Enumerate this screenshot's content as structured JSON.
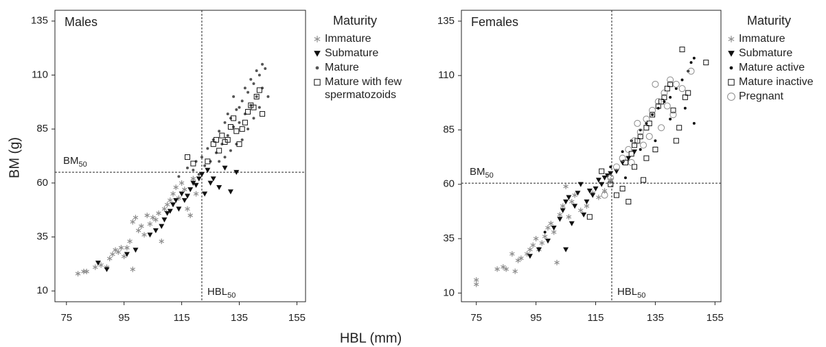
{
  "chart_data": [
    {
      "type": "scatter",
      "title": "Males",
      "xlabel": "HBL (mm)",
      "ylabel": "BM (g)",
      "legend_title": "Maturity",
      "xlim": [
        71,
        158
      ],
      "xticks": [
        75,
        95,
        115,
        135,
        155
      ],
      "ylim": [
        5,
        140
      ],
      "yticks": [
        10,
        35,
        60,
        85,
        110,
        135
      ],
      "hline": {
        "value": 65,
        "label": "BM",
        "sub": "50"
      },
      "vline": {
        "value": 122,
        "label": "HBL",
        "sub": "50"
      },
      "series": [
        {
          "name": "Immature",
          "color": "#8c8c8c",
          "marker": "star",
          "x": [
            79,
            81,
            82,
            85,
            87,
            89,
            90,
            91,
            92,
            93,
            94,
            95,
            96,
            97,
            98,
            98,
            99,
            100,
            101,
            102,
            103,
            104,
            105,
            106,
            107,
            108,
            109,
            110,
            111,
            112,
            113,
            114,
            115,
            116,
            117,
            118,
            119,
            120
          ],
          "values": [
            18,
            19,
            19,
            21,
            22,
            21,
            25,
            27,
            29,
            28,
            30,
            26,
            30,
            33,
            20,
            42,
            44,
            38,
            40,
            36,
            45,
            41,
            44,
            43,
            46,
            33,
            48,
            50,
            52,
            55,
            58,
            53,
            60,
            57,
            48,
            45,
            62,
            55
          ]
        },
        {
          "name": "Submature",
          "color": "#111111",
          "marker": "triangle",
          "x": [
            86,
            89,
            96,
            99,
            104,
            106,
            108,
            109,
            110,
            111,
            112,
            113,
            114,
            115,
            116,
            117,
            118,
            119,
            120,
            121,
            122,
            123,
            124,
            125,
            126,
            128,
            130,
            132,
            134
          ],
          "values": [
            23,
            20,
            27,
            29,
            36,
            38,
            40,
            43,
            46,
            47,
            50,
            52,
            48,
            55,
            52,
            54,
            57,
            60,
            59,
            62,
            64,
            55,
            66,
            60,
            62,
            58,
            67,
            56,
            65
          ]
        },
        {
          "name": "Mature",
          "color": "#555555",
          "marker": "dot",
          "x": [
            114,
            117,
            119,
            120,
            121,
            122,
            123,
            124,
            125,
            126,
            127,
            128,
            129,
            130,
            131,
            132,
            133,
            134,
            135,
            136,
            137,
            138,
            139,
            140,
            141,
            142,
            143,
            144,
            145,
            136,
            138,
            140,
            142,
            132,
            130,
            134,
            128,
            143,
            141,
            139,
            137,
            135,
            133,
            131
          ],
          "values": [
            63,
            67,
            66,
            70,
            64,
            72,
            68,
            76,
            70,
            80,
            74,
            84,
            78,
            88,
            82,
            90,
            86,
            94,
            88,
            98,
            92,
            102,
            96,
            106,
            100,
            110,
            104,
            113,
            100,
            80,
            85,
            90,
            95,
            75,
            72,
            78,
            70,
            115,
            112,
            108,
            104,
            95,
            100,
            92
          ]
        },
        {
          "name": "Mature with few spermatozoids",
          "color": "#111111",
          "marker": "square",
          "x": [
            117,
            119,
            124,
            126,
            127,
            128,
            129,
            130,
            131,
            132,
            133,
            134,
            135,
            136,
            137,
            138,
            139,
            140,
            141,
            142,
            143
          ],
          "values": [
            72,
            69,
            70,
            78,
            80,
            75,
            82,
            79,
            80,
            86,
            90,
            84,
            78,
            85,
            88,
            93,
            96,
            95,
            100,
            103,
            92
          ]
        }
      ]
    },
    {
      "type": "scatter",
      "title": "Females",
      "legend_title": "Maturity",
      "xlim": [
        70,
        157
      ],
      "xticks": [
        75,
        95,
        115,
        135,
        155
      ],
      "ylim": [
        6,
        140
      ],
      "yticks": [
        10,
        35,
        60,
        85,
        110,
        135
      ],
      "hline": {
        "value": 60.5,
        "label": "BM",
        "sub": "50"
      },
      "vline": {
        "value": 120.4,
        "label": "HBL",
        "sub": "50"
      },
      "series": [
        {
          "name": "Immature",
          "color": "#8c8c8c",
          "marker": "star",
          "x": [
            75,
            75,
            82,
            84,
            85,
            87,
            88,
            89,
            90,
            92,
            93,
            94,
            95,
            96,
            97,
            98,
            99,
            100,
            101,
            102,
            103,
            104,
            105,
            106,
            107,
            108,
            110,
            112,
            114,
            116,
            118,
            120
          ],
          "values": [
            14,
            16,
            21,
            22,
            21,
            28,
            20,
            25,
            26,
            28,
            30,
            32,
            35,
            30,
            33,
            36,
            40,
            42,
            38,
            24,
            46,
            50,
            59,
            45,
            52,
            55,
            48,
            50,
            56,
            54,
            57,
            62
          ]
        },
        {
          "name": "Submature",
          "color": "#111111",
          "marker": "triangle",
          "x": [
            93,
            96,
            99,
            101,
            103,
            104,
            105,
            106,
            107,
            108,
            109,
            110,
            111,
            112,
            113,
            114,
            115,
            116,
            117,
            118,
            119,
            120,
            122,
            124,
            126,
            128,
            105
          ],
          "values": [
            27,
            30,
            34,
            40,
            44,
            48,
            52,
            54,
            42,
            50,
            56,
            60,
            46,
            52,
            57,
            55,
            58,
            62,
            60,
            63,
            64,
            65,
            66,
            70,
            72,
            75,
            30
          ]
        },
        {
          "name": "Mature active",
          "color": "#111111",
          "marker": "dot",
          "x": [
            98,
            120,
            124,
            127,
            130,
            132,
            134,
            136,
            138,
            140,
            142,
            144,
            146,
            148,
            148,
            145,
            140,
            135,
            130,
            125,
            147
          ],
          "values": [
            38,
            68,
            75,
            80,
            85,
            88,
            92,
            95,
            98,
            100,
            104,
            108,
            112,
            118,
            88,
            95,
            90,
            80,
            76,
            63,
            116
          ]
        },
        {
          "name": "Mature inactive",
          "color": "#111111",
          "marker": "square",
          "x": [
            113,
            117,
            120,
            122,
            124,
            125,
            126,
            127,
            128,
            129,
            130,
            131,
            132,
            133,
            134,
            135,
            136,
            137,
            138,
            139,
            140,
            141,
            142,
            143,
            144,
            145,
            146,
            152,
            132,
            128
          ],
          "values": [
            45,
            66,
            60,
            55,
            58,
            70,
            52,
            74,
            78,
            80,
            82,
            62,
            86,
            88,
            92,
            76,
            96,
            98,
            100,
            104,
            106,
            94,
            80,
            86,
            122,
            100,
            102,
            116,
            72,
            68
          ]
        },
        {
          "name": "Pregnant",
          "color": "#888888",
          "marker": "circle",
          "x": [
            118,
            120,
            122,
            124,
            126,
            128,
            130,
            132,
            134,
            136,
            138,
            140,
            142,
            144,
            147,
            129,
            133,
            137,
            135,
            139,
            141,
            127,
            131
          ],
          "values": [
            55,
            63,
            68,
            72,
            76,
            80,
            84,
            90,
            94,
            98,
            102,
            108,
            106,
            104,
            112,
            88,
            82,
            86,
            106,
            96,
            92,
            70,
            78
          ]
        }
      ]
    }
  ]
}
